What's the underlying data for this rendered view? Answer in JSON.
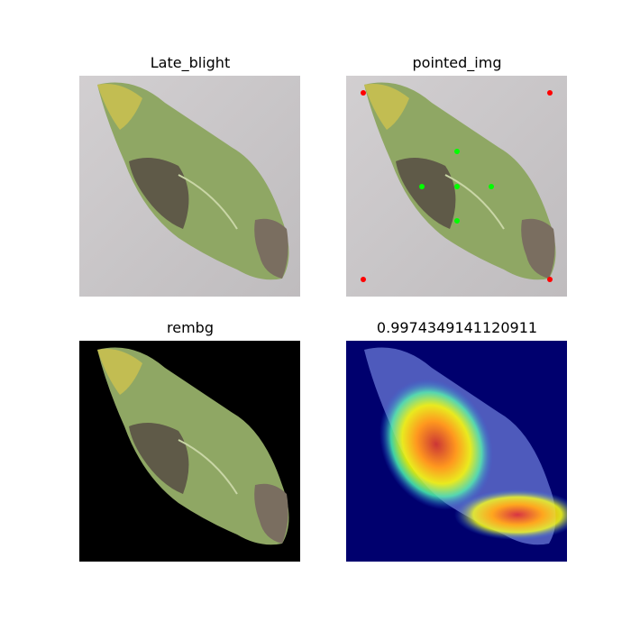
{
  "panels": [
    {
      "title": "Late_blight"
    },
    {
      "title": "pointed_img"
    },
    {
      "title": "rembg"
    },
    {
      "title": "0.9974349141120911"
    }
  ],
  "colors": {
    "background_paper": "#c9c6c8",
    "mask_background": "#000000",
    "heatmap_base": "#00007a",
    "point_positive": "#00ff00",
    "point_negative": "#ff0000"
  }
}
